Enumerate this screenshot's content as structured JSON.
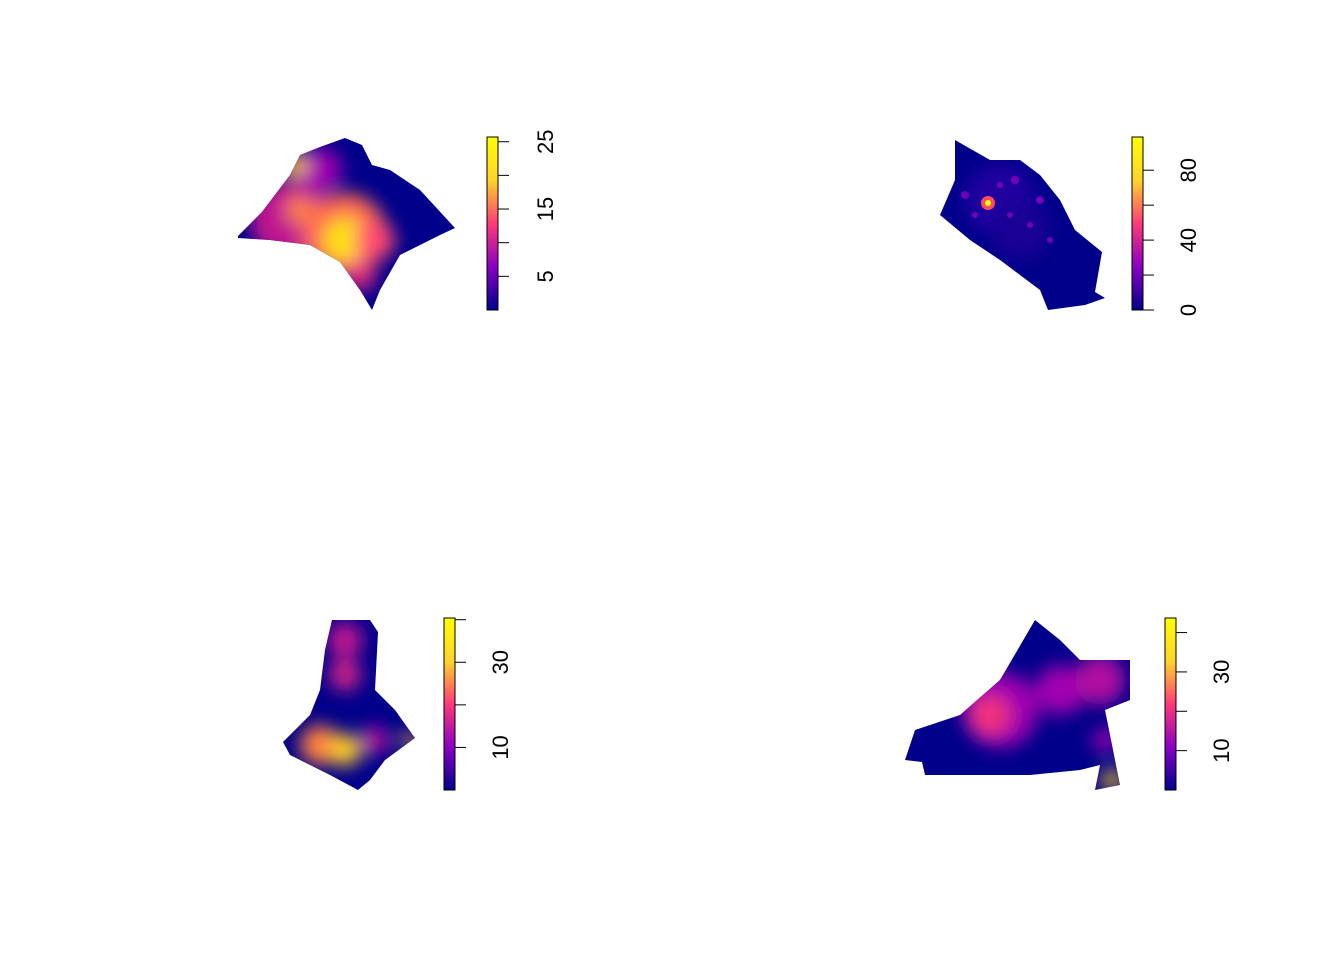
{
  "chart_data": [
    {
      "type": "density-map",
      "zlim": [
        0,
        25.7
      ],
      "ticks": [
        5,
        15,
        25
      ],
      "minor_ticks": [
        10,
        20
      ],
      "colors": [
        "#00008b",
        "#8a00c4",
        "#ff3a78",
        "#ffd42a",
        "#ffff00"
      ]
    },
    {
      "type": "density-map",
      "zlim": [
        0,
        99
      ],
      "ticks": [
        0,
        40,
        80
      ],
      "minor_ticks": [
        20,
        60
      ],
      "colors": [
        "#00008b",
        "#8a00c4",
        "#ff3a78",
        "#ffd42a",
        "#ffff00"
      ]
    },
    {
      "type": "density-map",
      "zlim": [
        0,
        40.4
      ],
      "ticks": [
        10,
        30
      ],
      "minor_ticks": [
        20,
        40
      ],
      "colors": [
        "#00008b",
        "#8a00c4",
        "#ff3a78",
        "#ffd42a",
        "#ffff00"
      ]
    },
    {
      "type": "density-map",
      "zlim": [
        0,
        43.7
      ],
      "ticks": [
        10,
        30
      ],
      "minor_ticks": [
        20,
        40
      ],
      "colors": [
        "#00008b",
        "#8a00c4",
        "#ff3a78",
        "#ffd42a",
        "#ffff00"
      ]
    }
  ]
}
